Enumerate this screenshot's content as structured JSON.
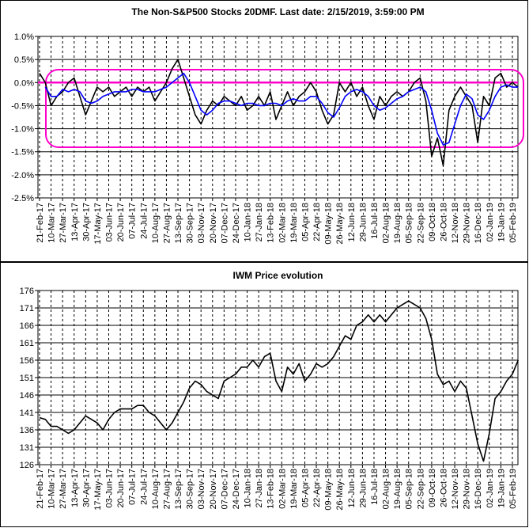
{
  "chart_data": [
    {
      "type": "line",
      "title": "The Non-S&P500 Stocks 20DMF. Last date: 2/15/2019, 3:59:00 PM",
      "categories": [
        "21-Feb-17",
        null,
        "10-Mar-17",
        null,
        "27-Mar-17",
        null,
        "13-Apr-17",
        null,
        "30-Apr-17",
        null,
        "17-May-17",
        null,
        "03-Jun-17",
        null,
        "20-Jun-17",
        null,
        "07-Jul-17",
        null,
        "24-Jul-17",
        null,
        "10-Aug-17",
        null,
        "27-Aug-17",
        null,
        "13-Sep-17",
        null,
        "30-Sep-17",
        null,
        "03-Nov-17",
        null,
        "20-Nov-17",
        null,
        "07-Dec-17",
        null,
        "24-Dec-17",
        null,
        "10-Jan-18",
        null,
        "27-Jan-18",
        null,
        "13-Feb-18",
        null,
        "02-Mar-18",
        null,
        "19-Mar-18",
        null,
        "05-Apr-18",
        null,
        "22-Apr-18",
        null,
        "09-May-18",
        null,
        "26-May-18",
        null,
        "12-Jun-18",
        null,
        "29-Jun-18",
        null,
        "16-Jul-18",
        null,
        "02-Aug-18",
        null,
        "19-Aug-18",
        null,
        "05-Sep-18",
        null,
        "22-Sep-18",
        null,
        "09-Oct-18",
        null,
        "26-Oct-18",
        null,
        "12-Nov-18",
        null,
        "29-Nov-18",
        null,
        "16-Dec-18",
        null,
        "02-Jan-19",
        null,
        "19-Jan-19",
        null,
        "05-Feb-19",
        null
      ],
      "series": [
        {
          "color": "#000000",
          "values": [
            0.2,
            0.0,
            -0.5,
            -0.3,
            -0.2,
            0.0,
            0.1,
            -0.3,
            -0.7,
            -0.4,
            -0.1,
            -0.2,
            -0.1,
            -0.3,
            -0.2,
            -0.1,
            -0.3,
            -0.1,
            -0.2,
            -0.1,
            -0.4,
            -0.2,
            0.0,
            0.3,
            0.5,
            0.1,
            -0.3,
            -0.7,
            -0.9,
            -0.6,
            -0.4,
            -0.5,
            -0.3,
            -0.4,
            -0.5,
            -0.3,
            -0.6,
            -0.5,
            -0.3,
            -0.5,
            -0.2,
            -0.8,
            -0.5,
            -0.2,
            -0.5,
            -0.3,
            -0.2,
            0.0,
            -0.2,
            -0.6,
            -0.9,
            -0.7,
            0.0,
            -0.2,
            0.0,
            -0.3,
            -0.1,
            -0.5,
            -0.8,
            -0.3,
            -0.5,
            -0.3,
            -0.2,
            -0.3,
            -0.2,
            0.0,
            0.1,
            -0.4,
            -1.6,
            -1.2,
            -1.8,
            -0.6,
            -0.3,
            -0.1,
            -0.3,
            -0.5,
            -1.3,
            -0.3,
            -0.5,
            0.1,
            0.2,
            -0.1,
            0.0,
            -0.1
          ]
        },
        {
          "color": "#0000ff",
          "values": [
            null,
            -0.1,
            -0.3,
            -0.3,
            -0.15,
            -0.2,
            -0.15,
            -0.2,
            -0.4,
            -0.45,
            -0.4,
            -0.3,
            -0.25,
            -0.2,
            -0.2,
            -0.2,
            -0.15,
            -0.15,
            -0.2,
            -0.2,
            -0.2,
            -0.15,
            -0.1,
            0.0,
            0.1,
            0.2,
            0.0,
            -0.3,
            -0.6,
            -0.7,
            -0.6,
            -0.45,
            -0.4,
            -0.4,
            -0.45,
            -0.5,
            -0.45,
            -0.45,
            -0.5,
            -0.5,
            -0.45,
            -0.45,
            -0.5,
            -0.4,
            -0.35,
            -0.4,
            -0.4,
            -0.3,
            -0.3,
            -0.45,
            -0.65,
            -0.75,
            -0.55,
            -0.3,
            -0.2,
            -0.15,
            -0.2,
            -0.3,
            -0.5,
            -0.6,
            -0.55,
            -0.45,
            -0.35,
            -0.3,
            -0.2,
            -0.15,
            -0.1,
            -0.2,
            -0.6,
            -1.1,
            -1.35,
            -1.3,
            -0.9,
            -0.5,
            -0.25,
            -0.35,
            -0.7,
            -0.8,
            -0.6,
            -0.3,
            -0.1,
            -0.05,
            -0.1,
            -0.1
          ]
        }
      ],
      "ylim": [
        -2.5,
        1.0
      ],
      "yticks": [
        {
          "value": 1.0,
          "label": "1.0%"
        },
        {
          "value": 0.5,
          "label": "0.5%"
        },
        {
          "value": 0,
          "label": "0.0%"
        },
        {
          "value": -0.5,
          "label": "-0.5%"
        },
        {
          "value": -1.0,
          "label": "-1.0%"
        },
        {
          "value": -1.5,
          "label": "-1.5%"
        },
        {
          "value": -2.0,
          "label": "-2.0%"
        },
        {
          "value": -2.5,
          "label": "-2.5%"
        }
      ],
      "hline": {
        "value": 0,
        "color": "#ff00cc"
      },
      "grid": true
    },
    {
      "type": "line",
      "title": "IWM Price evolution",
      "categories": [
        "21-Feb-17",
        null,
        "10-Mar-17",
        null,
        "27-Mar-17",
        null,
        "13-Apr-17",
        null,
        "30-Apr-17",
        null,
        "17-May-17",
        null,
        "03-Jun-17",
        null,
        "20-Jun-17",
        null,
        "07-Jul-17",
        null,
        "24-Jul-17",
        null,
        "10-Aug-17",
        null,
        "27-Aug-17",
        null,
        "13-Sep-17",
        null,
        "30-Sep-17",
        null,
        "03-Nov-17",
        null,
        "20-Nov-17",
        null,
        "07-Dec-17",
        null,
        "24-Dec-17",
        null,
        "10-Jan-18",
        null,
        "27-Jan-18",
        null,
        "13-Feb-18",
        null,
        "02-Mar-18",
        null,
        "19-Mar-18",
        null,
        "05-Apr-18",
        null,
        "22-Apr-18",
        null,
        "09-May-18",
        null,
        "26-May-18",
        null,
        "12-Jun-18",
        null,
        "29-Jun-18",
        null,
        "16-Jul-18",
        null,
        "02-Aug-18",
        null,
        "19-Aug-18",
        null,
        "05-Sep-18",
        null,
        "22-Sep-18",
        null,
        "09-Oct-18",
        null,
        "26-Oct-18",
        null,
        "12-Nov-18",
        null,
        "29-Nov-18",
        null,
        "16-Dec-18",
        null,
        "02-Jan-19",
        null,
        "19-Jan-19",
        null,
        "05-Feb-19",
        null
      ],
      "series": [
        {
          "color": "#000000",
          "values": [
            139.5,
            139,
            137,
            137,
            136,
            135,
            136,
            138,
            140,
            139,
            138,
            136,
            139,
            141,
            142,
            142,
            142,
            143,
            143,
            141,
            140,
            138,
            136,
            138,
            141,
            144,
            148,
            150,
            149,
            147,
            146,
            145,
            150,
            151,
            152,
            154,
            154,
            156,
            154,
            157,
            158,
            150,
            147,
            154,
            152,
            155,
            150,
            152,
            155,
            154,
            155,
            157,
            160,
            163,
            162,
            166,
            167,
            169,
            167,
            169,
            167,
            169,
            171,
            172,
            173,
            172,
            171,
            168,
            162,
            152,
            149,
            150,
            147,
            150,
            148,
            140,
            132,
            127,
            135,
            145,
            147,
            150,
            152,
            156
          ]
        }
      ],
      "ylim": [
        126,
        176
      ],
      "yticks": [
        126,
        131,
        136,
        141,
        146,
        151,
        156,
        161,
        166,
        171,
        176
      ],
      "grid": true
    }
  ]
}
